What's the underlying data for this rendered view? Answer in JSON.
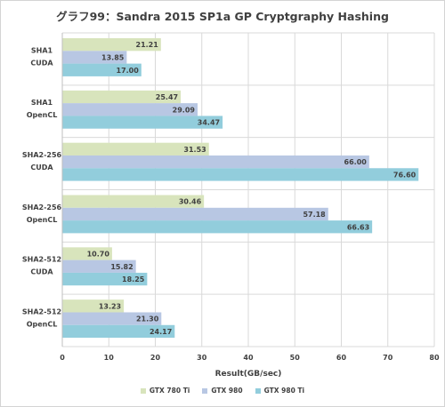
{
  "chart_data": {
    "type": "bar",
    "orientation": "horizontal",
    "title": "グラフ99：Sandra 2015 SP1a GP Cryptgraphy Hashing",
    "xlabel": "Result(GB/sec)",
    "ylabel": "",
    "xlim": [
      0,
      80
    ],
    "xticks": [
      0,
      10,
      20,
      30,
      40,
      50,
      60,
      70,
      80
    ],
    "grid": true,
    "legend_position": "bottom",
    "categories": [
      [
        "SHA1",
        "CUDA"
      ],
      [
        "SHA1",
        "OpenCL"
      ],
      [
        "SHA2-256",
        "CUDA"
      ],
      [
        "SHA2-256",
        "OpenCL"
      ],
      [
        "SHA2-512",
        "CUDA"
      ],
      [
        "SHA2-512",
        "OpenCL"
      ]
    ],
    "series": [
      {
        "name": "GTX 780 Ti",
        "color": "#d8e4bc",
        "values": [
          21.21,
          25.47,
          31.53,
          30.46,
          10.7,
          13.23
        ]
      },
      {
        "name": "GTX 980",
        "color": "#b8c7e3",
        "values": [
          13.85,
          29.09,
          66.0,
          57.18,
          15.82,
          21.3
        ]
      },
      {
        "name": "GTX 980 Ti",
        "color": "#92cddc",
        "values": [
          17.0,
          34.47,
          76.6,
          66.63,
          18.25,
          24.17
        ]
      }
    ]
  }
}
